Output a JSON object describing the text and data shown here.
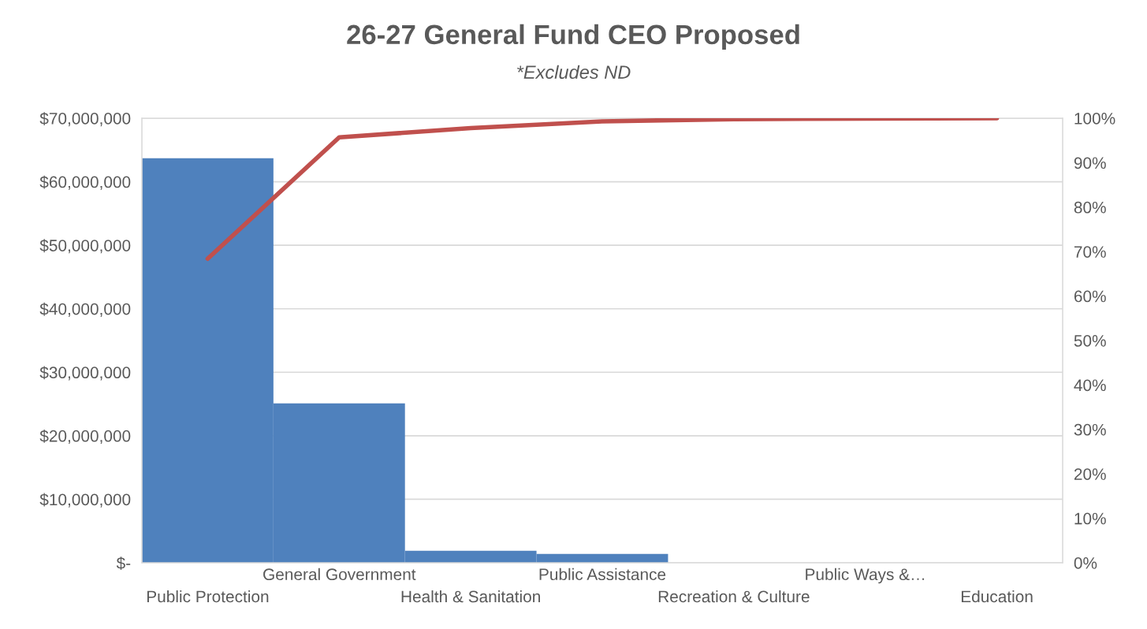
{
  "chart_data": {
    "type": "bar",
    "title": "26-27 General Fund CEO Proposed",
    "subtitle": "*Excludes ND",
    "categories": [
      "Public Protection",
      "General Government",
      "Health & Sanitation",
      "Public Assistance",
      "Recreation & Culture",
      "Public Ways &…",
      "Education"
    ],
    "series": [
      {
        "color": "#4f81bd",
        "values": [
          63700000,
          25100000,
          1900000,
          1400000,
          null,
          null,
          null
        ]
      },
      {
        "type": "line",
        "axis": "y2",
        "color": "#c0504d",
        "values": [
          68.4,
          95.7,
          97.8,
          99.3,
          99.8,
          99.9,
          100
        ]
      }
    ],
    "ylim": [
      0,
      70000000
    ],
    "yticks": [
      {
        "value": 0,
        "label": "$-"
      },
      {
        "value": 10000000,
        "label": "$10,000,000"
      },
      {
        "value": 20000000,
        "label": "$20,000,000"
      },
      {
        "value": 30000000,
        "label": "$30,000,000"
      },
      {
        "value": 40000000,
        "label": "$40,000,000"
      },
      {
        "value": 50000000,
        "label": "$50,000,000"
      },
      {
        "value": 60000000,
        "label": "$60,000,000"
      },
      {
        "value": 70000000,
        "label": "$70,000,000"
      }
    ],
    "y2lim": [
      0,
      100
    ],
    "y2ticks": [
      {
        "value": 0,
        "label": "0%"
      },
      {
        "value": 10,
        "label": "10%"
      },
      {
        "value": 20,
        "label": "20%"
      },
      {
        "value": 30,
        "label": "30%"
      },
      {
        "value": 40,
        "label": "40%"
      },
      {
        "value": 50,
        "label": "50%"
      },
      {
        "value": 60,
        "label": "60%"
      },
      {
        "value": 70,
        "label": "70%"
      },
      {
        "value": 80,
        "label": "80%"
      },
      {
        "value": 90,
        "label": "90%"
      },
      {
        "value": 100,
        "label": "100%"
      }
    ],
    "grid": "y",
    "marker": "none",
    "line_style": "solid"
  }
}
